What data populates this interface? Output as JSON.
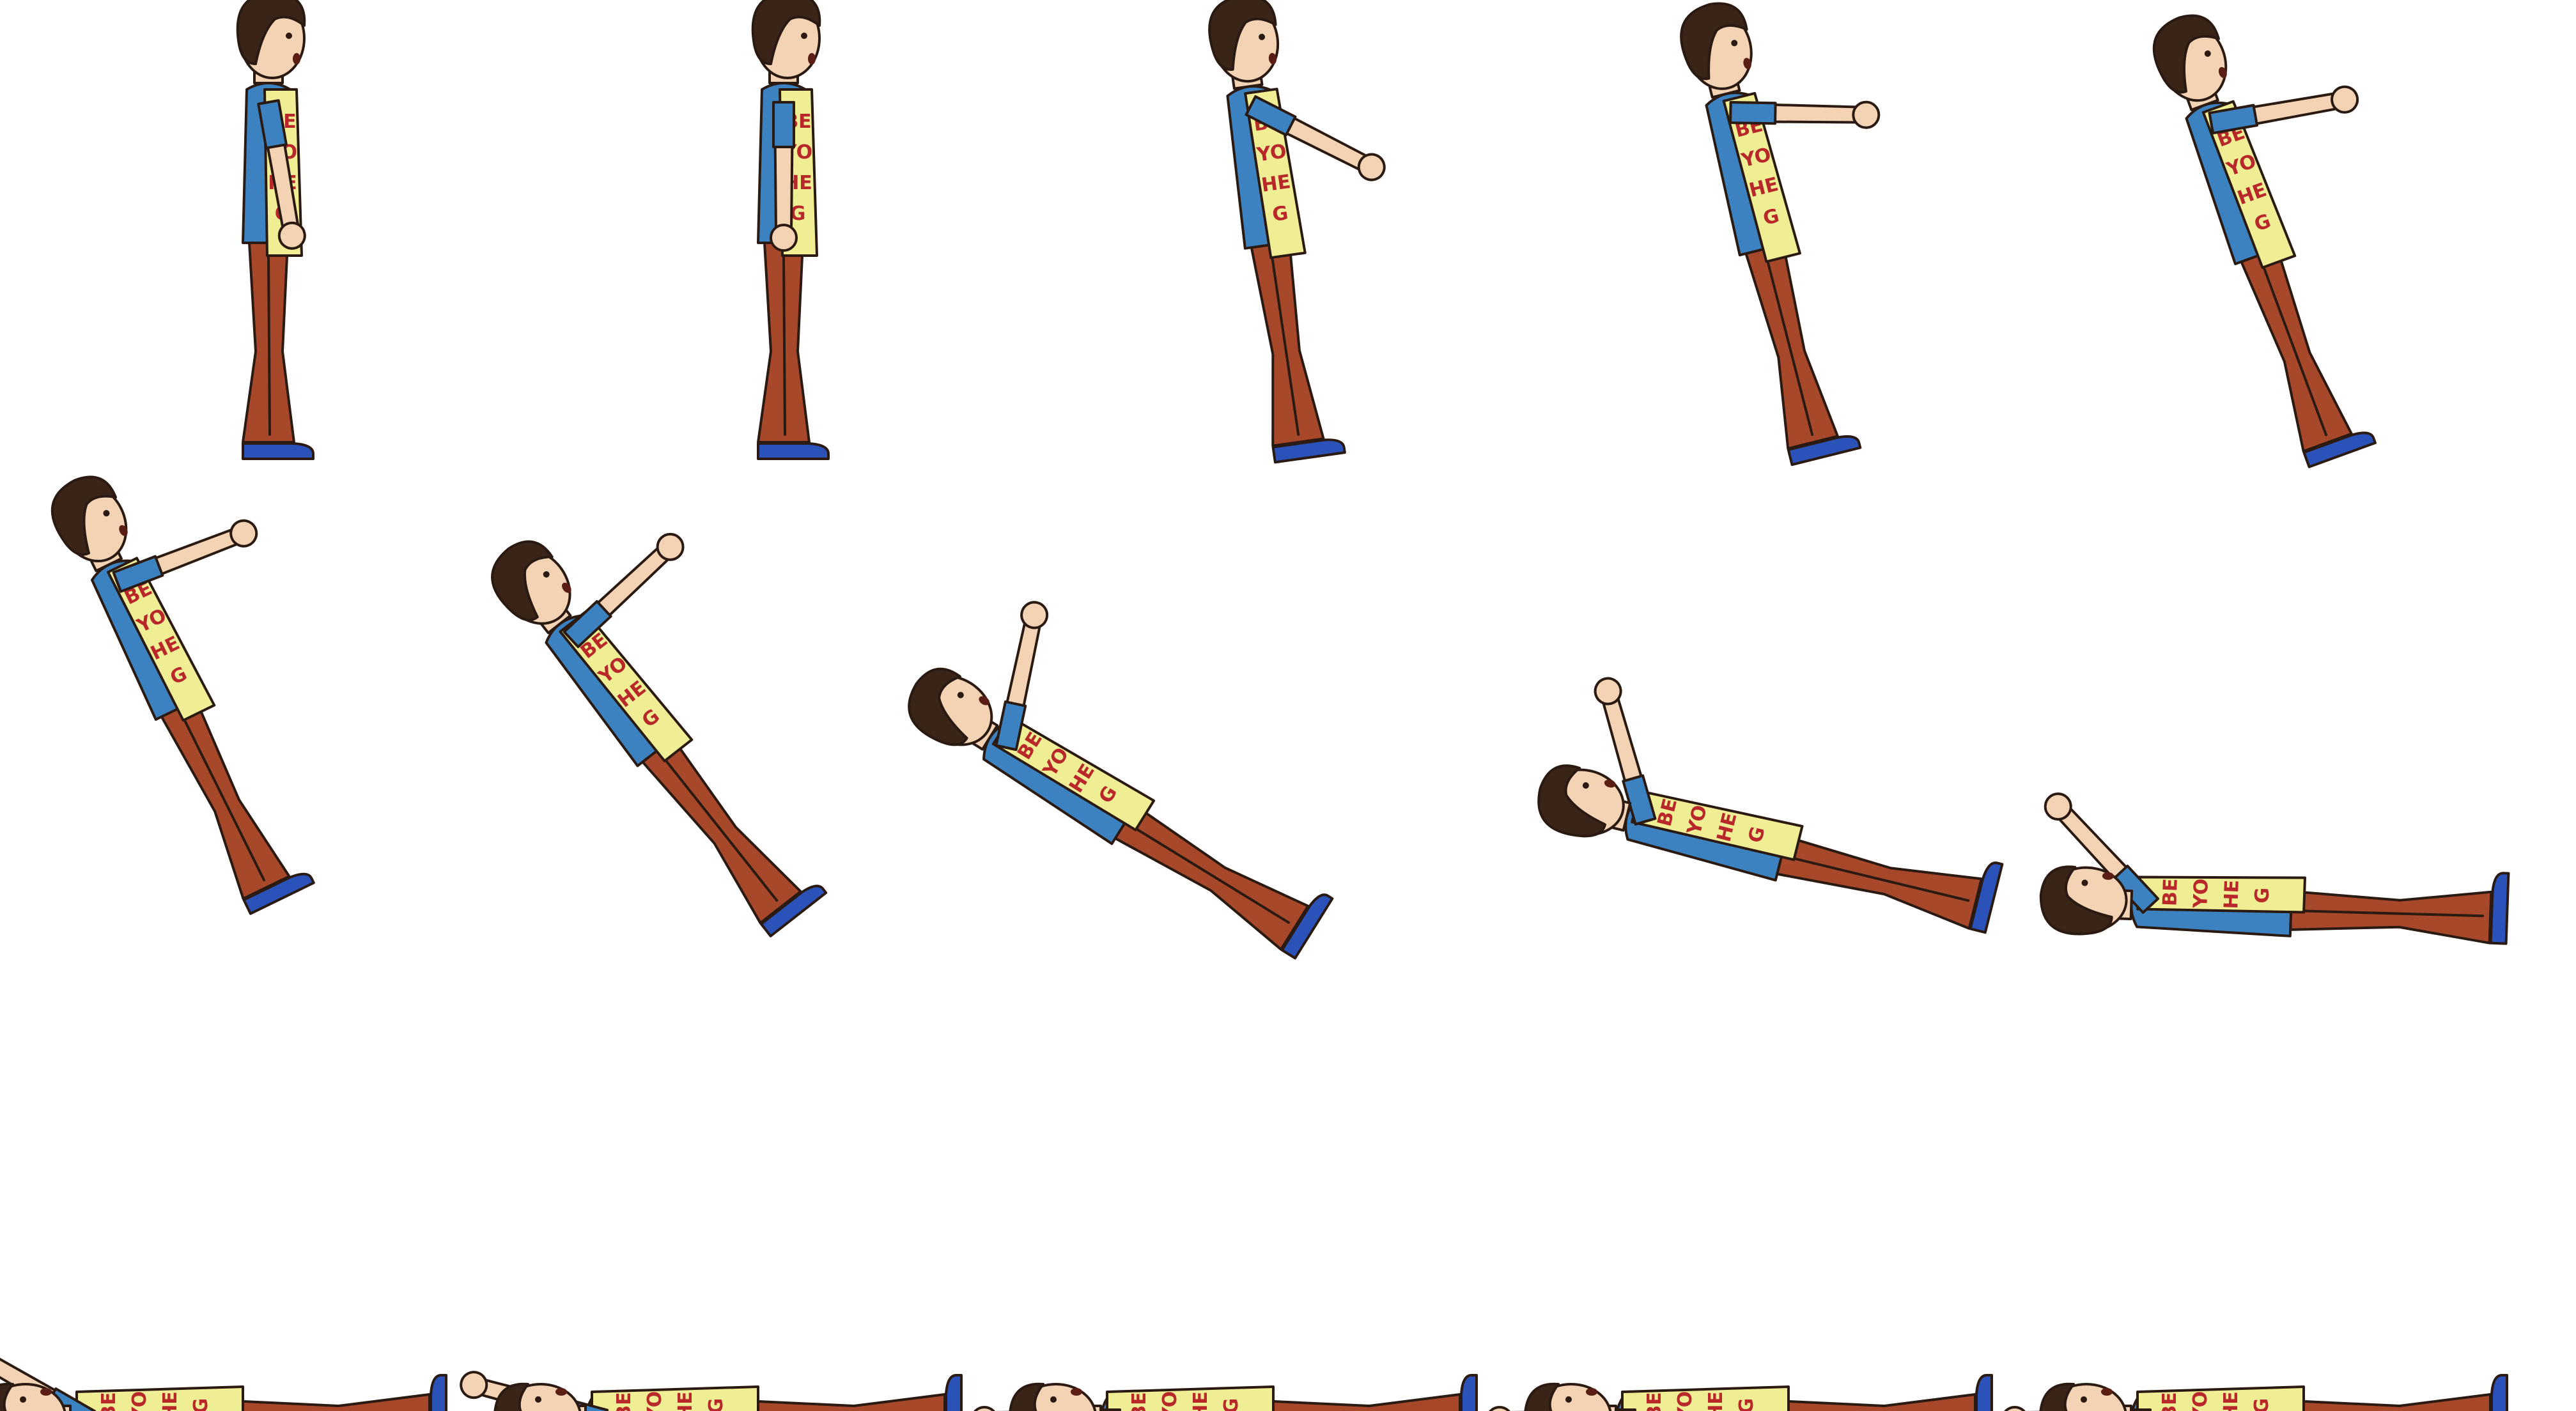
{
  "sprite_sheet": {
    "rows": 3,
    "columns": 5,
    "frame_count": 15,
    "background": "#ffffff",
    "frames": [
      {
        "index": 1,
        "pose": "standing"
      },
      {
        "index": 2,
        "pose": "standing-arms-down"
      },
      {
        "index": 3,
        "pose": "reaching-forward"
      },
      {
        "index": 4,
        "pose": "leaning-back"
      },
      {
        "index": 5,
        "pose": "leaning-back-arms-out"
      },
      {
        "index": 6,
        "pose": "falling-back-1"
      },
      {
        "index": 7,
        "pose": "falling-back-2"
      },
      {
        "index": 8,
        "pose": "falling-back-3"
      },
      {
        "index": 9,
        "pose": "falling-back-4"
      },
      {
        "index": 10,
        "pose": "landing"
      },
      {
        "index": 11,
        "pose": "lying-arms-up"
      },
      {
        "index": 12,
        "pose": "lying-arms-mid"
      },
      {
        "index": 13,
        "pose": "lying-flat"
      },
      {
        "index": 14,
        "pose": "lying-flat"
      },
      {
        "index": 15,
        "pose": "lying-flat"
      }
    ]
  },
  "character": {
    "apron_text": [
      "BE",
      "YO",
      "HE",
      "G"
    ],
    "colors": {
      "hair": "#3a2418",
      "skin": "#f3d3b4",
      "shirt": "#3c82c0",
      "apron": "#f0ee94",
      "apron_text": "#b8282a",
      "pants": "#a8482a",
      "shoes": "#2a52b8",
      "outline": "#2a1a12"
    }
  }
}
